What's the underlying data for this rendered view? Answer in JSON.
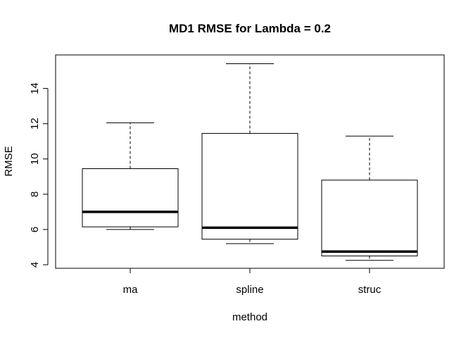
{
  "chart_data": {
    "type": "boxplot",
    "title": "MD1 RMSE for Lambda = 0.2",
    "xlabel": "method",
    "ylabel": "RMSE",
    "ylim": [
      3.8,
      15.9
    ],
    "yticks": [
      4,
      6,
      8,
      10,
      12,
      14
    ],
    "grid": false,
    "categories": [
      "ma",
      "spline",
      "struc"
    ],
    "boxes": [
      {
        "category": "ma",
        "min": 6.0,
        "q1": 6.15,
        "median": 7.0,
        "q3": 9.45,
        "max": 12.05
      },
      {
        "category": "spline",
        "min": 5.2,
        "q1": 5.45,
        "median": 6.1,
        "q3": 11.45,
        "max": 15.4
      },
      {
        "category": "struc",
        "min": 4.25,
        "q1": 4.5,
        "median": 4.75,
        "q3": 8.8,
        "max": 11.3
      }
    ]
  }
}
